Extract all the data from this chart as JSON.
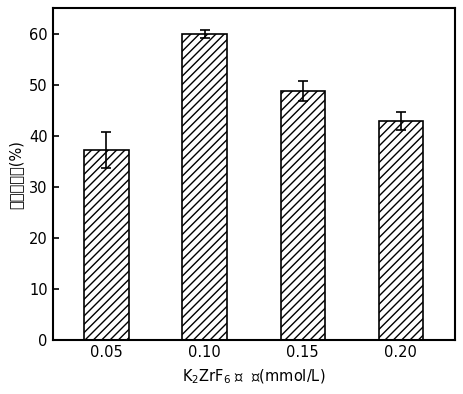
{
  "categories": [
    "0.05",
    "0.10",
    "0.15",
    "0.20"
  ],
  "values": [
    37.2,
    60.0,
    48.8,
    43.0
  ],
  "errors": [
    3.5,
    0.8,
    2.0,
    1.8
  ],
  "xlabel": "K$_2$ZrF$_6$ 浓  度(mmol/L)",
  "ylabel": "酶活回收率(%)",
  "ylim": [
    0,
    65
  ],
  "yticks": [
    0,
    10,
    20,
    30,
    40,
    50,
    60
  ],
  "bar_color": "white",
  "hatch": "////",
  "edgecolor": "#000000",
  "background_color": "#ffffff",
  "bar_width": 0.45
}
